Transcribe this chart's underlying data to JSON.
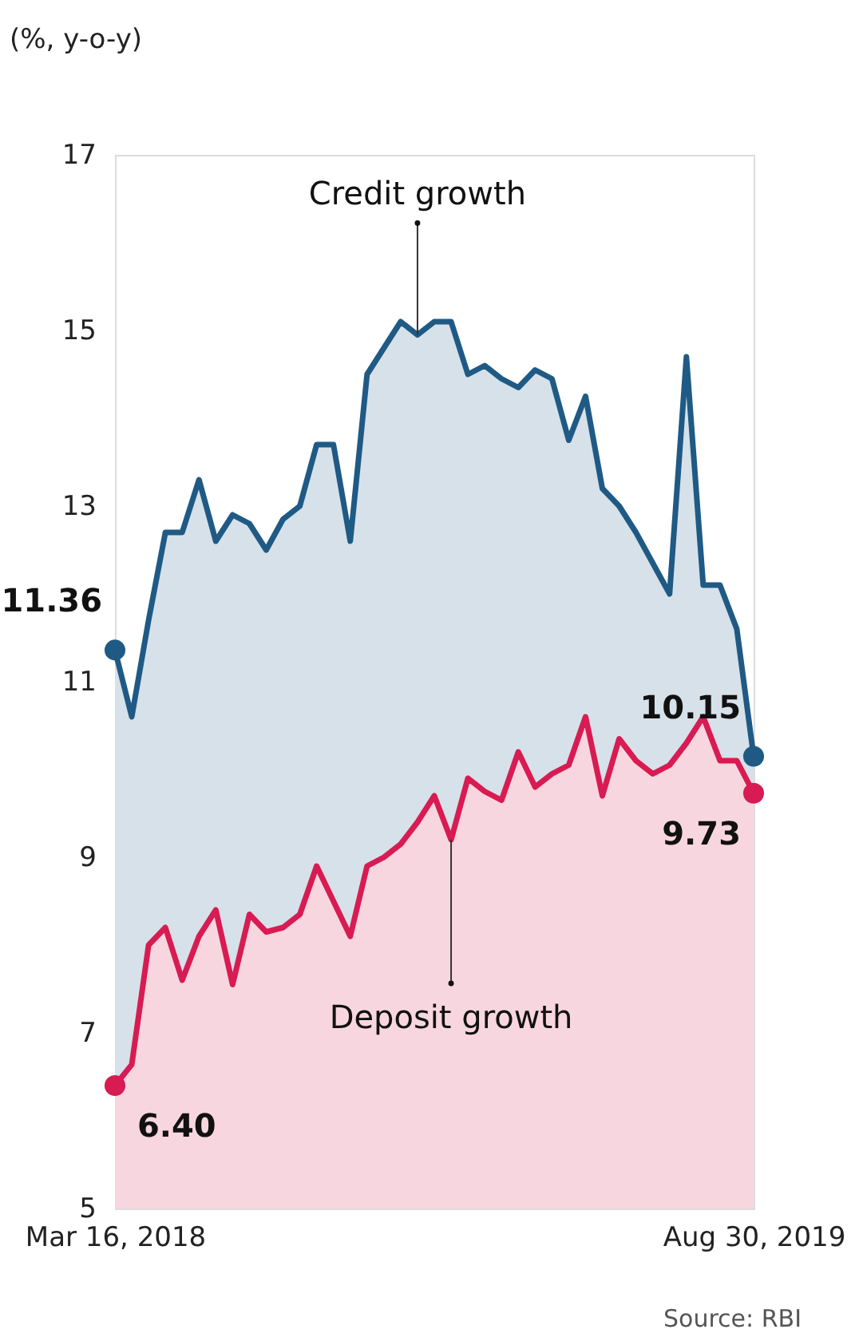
{
  "chart_data": {
    "type": "area",
    "ylabel": "(%, y-o-y)",
    "x": [
      "2018-03-16",
      "2018-03-30",
      "2018-04-13",
      "2018-04-27",
      "2018-05-11",
      "2018-05-25",
      "2018-06-08",
      "2018-06-22",
      "2018-07-06",
      "2018-07-20",
      "2018-08-03",
      "2018-08-17",
      "2018-08-31",
      "2018-09-14",
      "2018-09-28",
      "2018-10-12",
      "2018-10-26",
      "2018-11-09",
      "2018-11-23",
      "2018-12-07",
      "2018-12-21",
      "2019-01-04",
      "2019-01-18",
      "2019-02-01",
      "2019-02-15",
      "2019-03-01",
      "2019-03-15",
      "2019-03-29",
      "2019-04-12",
      "2019-04-26",
      "2019-05-10",
      "2019-05-24",
      "2019-06-07",
      "2019-06-21",
      "2019-07-05",
      "2019-07-19",
      "2019-08-02",
      "2019-08-16",
      "2019-08-30"
    ],
    "series": [
      {
        "color": "#1f5a85",
        "values": [
          11.36,
          10.6,
          11.7,
          12.7,
          12.7,
          13.3,
          12.6,
          12.9,
          12.8,
          12.5,
          12.85,
          13.0,
          13.7,
          13.7,
          12.6,
          14.5,
          14.8,
          15.1,
          14.95,
          15.1,
          15.1,
          14.5,
          14.6,
          14.45,
          14.35,
          14.55,
          14.45,
          13.75,
          14.25,
          13.2,
          13.0,
          12.7,
          12.35,
          12.0,
          14.7,
          12.1,
          12.1,
          11.6,
          10.15
        ],
        "value_labels": [
          "11.36",
          null,
          null,
          null,
          null,
          null,
          null,
          null,
          null,
          null,
          null,
          null,
          null,
          null,
          null,
          null,
          null,
          null,
          null,
          null,
          null,
          null,
          null,
          null,
          null,
          null,
          null,
          null,
          null,
          null,
          null,
          null,
          null,
          null,
          null,
          null,
          null,
          null,
          "10.15"
        ]
      },
      {
        "color": "#d81b52",
        "values": [
          6.4,
          6.64,
          8.0,
          8.2,
          7.6,
          8.1,
          8.4,
          7.55,
          8.35,
          8.15,
          8.2,
          8.35,
          8.9,
          8.5,
          8.1,
          8.9,
          9.0,
          9.15,
          9.4,
          9.7,
          9.2,
          9.9,
          9.75,
          9.65,
          10.2,
          9.8,
          9.95,
          10.05,
          10.6,
          9.7,
          10.35,
          10.1,
          9.95,
          10.05,
          10.3,
          10.6,
          10.1,
          10.1,
          9.73
        ],
        "value_labels": [
          "6.40",
          null,
          null,
          null,
          null,
          null,
          null,
          null,
          null,
          null,
          null,
          null,
          null,
          null,
          null,
          null,
          null,
          null,
          null,
          null,
          null,
          null,
          null,
          null,
          null,
          null,
          null,
          null,
          null,
          null,
          null,
          null,
          null,
          null,
          null,
          null,
          null,
          null,
          "9.73"
        ]
      }
    ],
    "xlim": [
      "2018-03-16",
      "2019-08-30"
    ],
    "xticks": [
      {
        "value": "2018-03-16",
        "label": "Mar 16, 2018"
      },
      {
        "value": "2019-08-30",
        "label": "Aug 30, 2019"
      }
    ],
    "ylim": [
      5,
      17
    ],
    "yticks": [
      5,
      7,
      9,
      11,
      13,
      15,
      17
    ],
    "grid": false,
    "annotations": [
      {
        "text": "Credit growth",
        "x": "2018-11-23",
        "y": 14.95
      },
      {
        "text": "Deposit growth",
        "x": "2018-12-21",
        "y": 9.2
      },
      "Source: RBI"
    ]
  }
}
